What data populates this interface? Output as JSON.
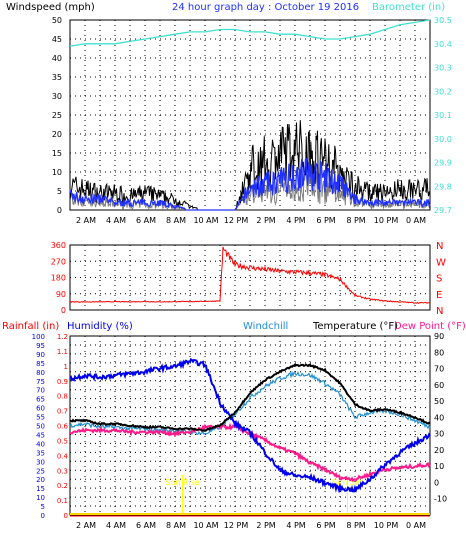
{
  "colors": {
    "background": "#ffffff",
    "plot_bg": "#ffffff",
    "grid": "#000000",
    "wind_gust": "#000000",
    "wind_avg": "#2030ff",
    "wind_dir_gray": "#808080",
    "barometer": "#40e0d0",
    "direction": "#ff0000",
    "humidity": "#0000ee",
    "windchill": "#2090d0",
    "temperature": "#000000",
    "dewpoint": "#ff1a8c",
    "rainfall": "#ff0000",
    "sun": "#ffff00",
    "zero_line": "#ffd700"
  },
  "chart_data": [
    {
      "type": "line",
      "title": "24 hour graph day : October 19 2016",
      "left_label": "Windspeed (mph)",
      "right_label": "Barometer (in)",
      "x_ticks": [
        "2 AM",
        "4 AM",
        "6 AM",
        "8 AM",
        "10 AM",
        "12 PM",
        "2 PM",
        "4 PM",
        "6 PM",
        "8 PM",
        "10 PM",
        "0 AM"
      ],
      "ylim_left": [
        0,
        50
      ],
      "y_ticks_left": [
        "0",
        "5",
        "10",
        "15",
        "20",
        "25",
        "30",
        "35",
        "40",
        "45",
        "50"
      ],
      "ylim_right": [
        29.7,
        30.5
      ],
      "y_ticks_right": [
        "29.7",
        "29.8",
        "29.9",
        "30.0",
        "30.1",
        "30.2",
        "30.3",
        "30.4",
        "30.5"
      ],
      "hours": [
        0,
        1,
        2,
        3,
        4,
        5,
        6,
        7,
        8,
        9,
        10,
        11,
        12,
        13,
        14,
        15,
        16,
        17,
        18,
        19,
        20,
        21,
        22,
        23,
        24
      ],
      "series": [
        {
          "role": "gust",
          "values": [
            7,
            6,
            5,
            5,
            4,
            5,
            4,
            3,
            1,
            0,
            0,
            0,
            12,
            14,
            16,
            18,
            17,
            15,
            11,
            7,
            5,
            5,
            6,
            6,
            6
          ]
        },
        {
          "role": "average",
          "values": [
            4,
            3,
            3,
            2,
            2,
            2,
            2,
            1,
            0,
            0,
            0,
            0,
            6,
            7,
            8,
            10,
            10,
            9,
            7,
            3,
            2,
            2,
            2,
            2,
            2
          ]
        },
        {
          "role": "barometer",
          "values": [
            30.39,
            30.4,
            30.4,
            30.4,
            30.41,
            30.42,
            30.43,
            30.44,
            30.45,
            30.45,
            30.46,
            30.46,
            30.45,
            30.45,
            30.44,
            30.44,
            30.43,
            30.42,
            30.42,
            30.43,
            30.44,
            30.46,
            30.48,
            30.49,
            30.5
          ]
        }
      ]
    },
    {
      "type": "scatter",
      "title": "",
      "ylim": [
        0,
        360
      ],
      "y_ticks": [
        "0",
        "90",
        "180",
        "270",
        "360"
      ],
      "right_labels": [
        "N",
        "W",
        "S",
        "E",
        "N"
      ],
      "hours": [
        0,
        1,
        2,
        3,
        4,
        5,
        6,
        7,
        8,
        9,
        10,
        10.2,
        11,
        12,
        13,
        14,
        15,
        16,
        17,
        18,
        19,
        20,
        21,
        22,
        23,
        24
      ],
      "values": [
        45,
        45,
        45,
        46,
        45,
        47,
        45,
        46,
        47,
        48,
        50,
        340,
        250,
        235,
        225,
        215,
        210,
        205,
        195,
        170,
        80,
        60,
        50,
        45,
        40,
        40
      ]
    },
    {
      "type": "line",
      "left_label_1": "Rainfall (in)",
      "left_label_2": "Humidity (%)",
      "center_label": "Windchill",
      "right_label_1": "Temperature (°F)",
      "right_label_2": "Dew Point (°F)",
      "ylim_humidity": [
        0,
        100
      ],
      "y_ticks_humidity": [
        "0",
        "5",
        "10",
        "15",
        "20",
        "25",
        "30",
        "35",
        "40",
        "45",
        "50",
        "55",
        "60",
        "65",
        "70",
        "75",
        "80",
        "85",
        "90",
        "95",
        "100"
      ],
      "ylim_rain": [
        0,
        1.2
      ],
      "y_ticks_rain": [
        "0",
        "0.1",
        "0.2",
        "0.3",
        "0.4",
        "0.5",
        "0.6",
        "0.7",
        "0.8",
        "0.9",
        "1",
        "1.1",
        "1.2"
      ],
      "ylim_temp": [
        -20,
        90
      ],
      "y_ticks_temp": [
        "-10",
        "0",
        "10",
        "20",
        "30",
        "40",
        "50",
        "60",
        "70",
        "80",
        "90"
      ],
      "sun_rise_hour": 7.5,
      "sun_set_hour": 18.5,
      "sun_rise_label": "Sun Rise",
      "sun_set_label": "Sun Set",
      "hours": [
        0,
        1,
        2,
        3,
        4,
        5,
        6,
        7,
        8,
        9,
        10,
        11,
        12,
        13,
        14,
        15,
        16,
        17,
        18,
        19,
        20,
        21,
        22,
        23,
        24
      ],
      "series": [
        {
          "role": "humidity",
          "values": [
            76,
            78,
            77,
            78,
            79,
            80,
            82,
            83,
            86,
            84,
            63,
            51,
            46,
            35,
            25,
            22,
            21,
            18,
            15,
            14,
            20,
            28,
            35,
            40,
            45
          ]
        },
        {
          "role": "temperature",
          "values": [
            38,
            38,
            36,
            36,
            35,
            34,
            34,
            33,
            33,
            32,
            35,
            43,
            55,
            63,
            68,
            72,
            72,
            69,
            61,
            48,
            44,
            45,
            43,
            40,
            36
          ]
        },
        {
          "role": "windchill",
          "values": [
            35,
            36,
            34,
            34,
            33,
            33,
            32,
            32,
            31,
            30,
            34,
            42,
            52,
            59,
            64,
            67,
            66,
            61,
            54,
            40,
            43,
            44,
            42,
            38,
            34
          ]
        },
        {
          "role": "dewpoint",
          "values": [
            31,
            32,
            32,
            32,
            31,
            31,
            31,
            30,
            31,
            34,
            34,
            34,
            30,
            26,
            21,
            18,
            12,
            8,
            3,
            2,
            5,
            8,
            9,
            10,
            11
          ]
        },
        {
          "role": "rainfall",
          "values": [
            0,
            0,
            0,
            0,
            0,
            0,
            0,
            0,
            0,
            0,
            0,
            0,
            0,
            0,
            0,
            0,
            0,
            0,
            0,
            0,
            0,
            0,
            0,
            0,
            0
          ]
        }
      ]
    }
  ]
}
